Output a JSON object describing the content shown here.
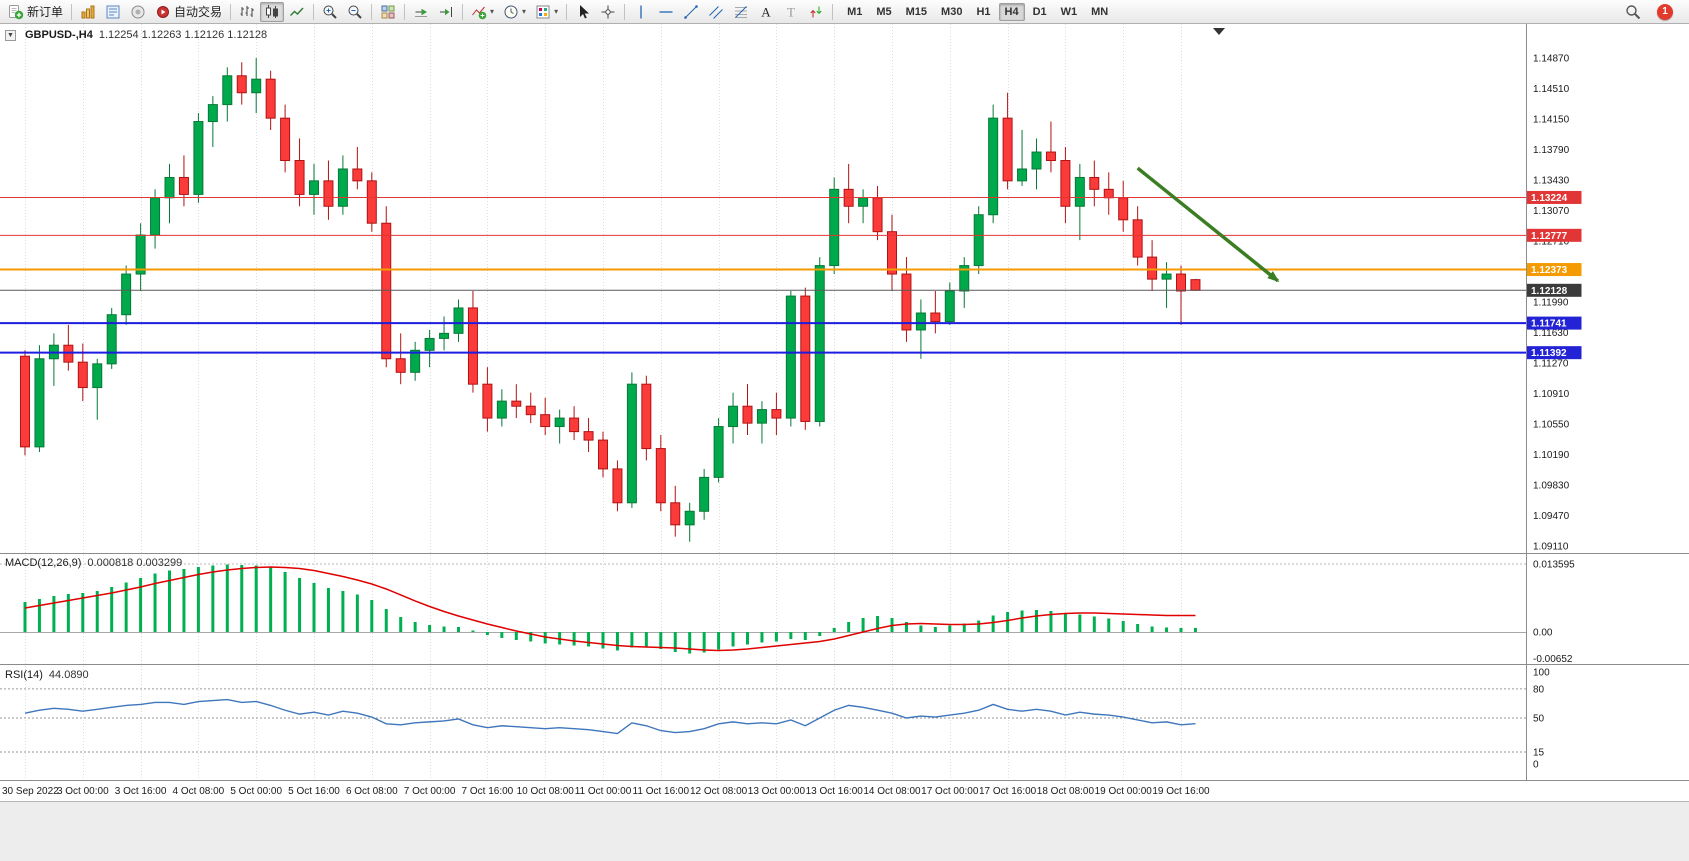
{
  "toolbar": {
    "caret_glyph": "▾",
    "notification_count": "1",
    "items": [
      {
        "type": "button",
        "name": "new-order-button",
        "icon": "new-order-icon",
        "label": "新订单"
      },
      {
        "type": "separator"
      },
      {
        "type": "button",
        "name": "new-chart-button",
        "icon": "new-chart-icon"
      },
      {
        "type": "button",
        "name": "market-watch-button",
        "icon": "market-watch-icon"
      },
      {
        "type": "button",
        "name": "data-window-button",
        "icon": "data-window-icon"
      },
      {
        "type": "button",
        "name": "autotrading-button",
        "icon": "autotrading-icon",
        "label": "自动交易"
      },
      {
        "type": "separator"
      },
      {
        "type": "button",
        "name": "bar-chart-button",
        "icon": "bars-icon"
      },
      {
        "type": "button",
        "name": "candlestick-chart-button",
        "icon": "candles-icon",
        "active": true
      },
      {
        "type": "button",
        "name": "line-chart-button",
        "icon": "line-icon"
      },
      {
        "type": "separator"
      },
      {
        "type": "button",
        "name": "zoom-in-button",
        "icon": "zoom-in-icon"
      },
      {
        "type": "button",
        "name": "zoom-out-button",
        "icon": "zoom-out-icon"
      },
      {
        "type": "separator"
      },
      {
        "type": "button",
        "name": "tile-windows-button",
        "icon": "tile-icon"
      },
      {
        "type": "separator"
      },
      {
        "type": "button",
        "name": "auto-scroll-button",
        "icon": "auto-scroll-icon"
      },
      {
        "type": "button",
        "name": "chart-shift-button",
        "icon": "chart-shift-icon"
      },
      {
        "type": "separator"
      },
      {
        "type": "button",
        "name": "indicators-button",
        "icon": "indicators-icon",
        "caret": true
      },
      {
        "type": "button",
        "name": "periods-button",
        "icon": "clock-icon",
        "caret": true
      },
      {
        "type": "button",
        "name": "templates-button",
        "icon": "templates-icon",
        "caret": true
      },
      {
        "type": "separator"
      },
      {
        "type": "button",
        "name": "cursor-button",
        "icon": "cursor-icon"
      },
      {
        "type": "button",
        "name": "crosshair-button",
        "icon": "crosshair-icon"
      },
      {
        "type": "separator"
      },
      {
        "type": "button",
        "name": "vertical-line-button",
        "icon": "vline-icon"
      },
      {
        "type": "button",
        "name": "horizontal-line-button",
        "icon": "hline-icon"
      },
      {
        "type": "button",
        "name": "trendline-button",
        "icon": "trendline-icon"
      },
      {
        "type": "button",
        "name": "channel-button",
        "icon": "channel-icon"
      },
      {
        "type": "button",
        "name": "fibonacci-button",
        "icon": "fibonacci-icon"
      },
      {
        "type": "button",
        "name": "text-button",
        "icon": "text-icon"
      },
      {
        "type": "button",
        "name": "text-label-button",
        "icon": "label-icon"
      },
      {
        "type": "button",
        "name": "arrows-button",
        "icon": "arrows-icon"
      },
      {
        "type": "separator"
      }
    ],
    "timeframes": {
      "items": [
        "M1",
        "M5",
        "M15",
        "M30",
        "H1",
        "H4",
        "D1",
        "W1",
        "MN"
      ],
      "active": "H4"
    }
  },
  "chart": {
    "collapse_glyph": "▼",
    "symbol_period": "GBPUSD-,H4",
    "ohlc_text": "1.12254 1.12263 1.12126 1.12128"
  },
  "chart_data": {
    "type": "candlestick",
    "symbol": "GBPUSD-",
    "timeframe": "H4",
    "current_bar": {
      "open": 1.12254,
      "high": 1.12263,
      "low": 1.12126,
      "close": 1.12128
    },
    "colors": {
      "up_fill": "#00a94c",
      "up_stroke": "#067a36",
      "down_fill": "#fb3a3a",
      "down_stroke": "#b11212",
      "grid": "#dcdcdc",
      "separator": "#8c8c8c",
      "macd_hist": "#00b050",
      "macd_signal": "#e00000",
      "rsi_line": "#3f76bc"
    },
    "price_axis": {
      "max": 1.1487,
      "min": 1.0911,
      "labels": [
        "1.14870",
        "1.14510",
        "1.14150",
        "1.13790",
        "1.13430",
        "1.13070",
        "1.12710",
        "1.12350",
        "1.11990",
        "1.11630",
        "1.11270",
        "1.10910",
        "1.10550",
        "1.10190",
        "1.09830",
        "1.09470",
        "1.09110"
      ]
    },
    "time_labels": [
      "30 Sep 2022",
      "3 Oct 00:00",
      "3 Oct 16:00",
      "4 Oct 08:00",
      "5 Oct 00:00",
      "5 Oct 16:00",
      "6 Oct 08:00",
      "7 Oct 00:00",
      "7 Oct 16:00",
      "10 Oct 08:00",
      "11 Oct 00:00",
      "11 Oct 16:00",
      "12 Oct 08:00",
      "13 Oct 00:00",
      "13 Oct 16:00",
      "14 Oct 08:00",
      "17 Oct 00:00",
      "17 Oct 16:00",
      "18 Oct 08:00",
      "19 Oct 00:00",
      "19 Oct 16:00"
    ],
    "label_every": 4,
    "candles": [
      [
        1.1135,
        1.1142,
        1.1018,
        1.1028
      ],
      [
        1.1028,
        1.1148,
        1.1022,
        1.1132
      ],
      [
        1.1132,
        1.1162,
        1.11,
        1.1148
      ],
      [
        1.1148,
        1.1172,
        1.1118,
        1.1128
      ],
      [
        1.1128,
        1.115,
        1.1082,
        1.1098
      ],
      [
        1.1098,
        1.1132,
        1.106,
        1.1126
      ],
      [
        1.1126,
        1.1192,
        1.112,
        1.1184
      ],
      [
        1.1184,
        1.1242,
        1.1172,
        1.1232
      ],
      [
        1.1232,
        1.1292,
        1.1212,
        1.1278
      ],
      [
        1.1278,
        1.1332,
        1.1262,
        1.1322
      ],
      [
        1.1322,
        1.1362,
        1.1292,
        1.1346
      ],
      [
        1.1346,
        1.1372,
        1.1312,
        1.1326
      ],
      [
        1.1326,
        1.1422,
        1.1316,
        1.1412
      ],
      [
        1.1412,
        1.1442,
        1.1382,
        1.1432
      ],
      [
        1.1432,
        1.1476,
        1.1412,
        1.1466
      ],
      [
        1.1466,
        1.1482,
        1.1432,
        1.1446
      ],
      [
        1.1446,
        1.1487,
        1.1422,
        1.1462
      ],
      [
        1.1462,
        1.1472,
        1.1402,
        1.1416
      ],
      [
        1.1416,
        1.1432,
        1.1352,
        1.1366
      ],
      [
        1.1366,
        1.1392,
        1.1312,
        1.1326
      ],
      [
        1.1326,
        1.1362,
        1.1302,
        1.1342
      ],
      [
        1.1342,
        1.1366,
        1.1296,
        1.1312
      ],
      [
        1.1312,
        1.1372,
        1.1302,
        1.1356
      ],
      [
        1.1356,
        1.1382,
        1.1332,
        1.1342
      ],
      [
        1.1342,
        1.1352,
        1.1282,
        1.1292
      ],
      [
        1.1292,
        1.1312,
        1.1122,
        1.1132
      ],
      [
        1.1132,
        1.1162,
        1.1102,
        1.1116
      ],
      [
        1.1116,
        1.1152,
        1.1106,
        1.1142
      ],
      [
        1.1142,
        1.1166,
        1.1122,
        1.1156
      ],
      [
        1.1156,
        1.1182,
        1.1142,
        1.1162
      ],
      [
        1.1162,
        1.1202,
        1.1152,
        1.1192
      ],
      [
        1.1192,
        1.1212,
        1.1092,
        1.1102
      ],
      [
        1.1102,
        1.1122,
        1.1046,
        1.1062
      ],
      [
        1.1062,
        1.1096,
        1.1052,
        1.1082
      ],
      [
        1.1082,
        1.1102,
        1.1062,
        1.1076
      ],
      [
        1.1076,
        1.1092,
        1.1056,
        1.1066
      ],
      [
        1.1066,
        1.1086,
        1.1042,
        1.1052
      ],
      [
        1.1052,
        1.1072,
        1.1032,
        1.1062
      ],
      [
        1.1062,
        1.1076,
        1.1036,
        1.1046
      ],
      [
        1.1046,
        1.1062,
        1.1022,
        1.1036
      ],
      [
        1.1036,
        1.1046,
        1.0992,
        1.1002
      ],
      [
        1.1002,
        1.1012,
        1.0952,
        1.0962
      ],
      [
        1.0962,
        1.1116,
        1.0956,
        1.1102
      ],
      [
        1.1102,
        1.1112,
        1.1012,
        1.1026
      ],
      [
        1.1026,
        1.1042,
        1.0952,
        1.0962
      ],
      [
        1.0962,
        1.0982,
        1.0922,
        1.0936
      ],
      [
        1.0936,
        1.0962,
        1.0916,
        1.0952
      ],
      [
        1.0952,
        1.1002,
        1.0942,
        1.0992
      ],
      [
        1.0992,
        1.1062,
        1.0986,
        1.1052
      ],
      [
        1.1052,
        1.1092,
        1.1032,
        1.1076
      ],
      [
        1.1076,
        1.1102,
        1.1042,
        1.1056
      ],
      [
        1.1056,
        1.1082,
        1.1032,
        1.1072
      ],
      [
        1.1072,
        1.1092,
        1.1042,
        1.1062
      ],
      [
        1.1062,
        1.1212,
        1.1052,
        1.1206
      ],
      [
        1.1206,
        1.1216,
        1.1048,
        1.1058
      ],
      [
        1.1058,
        1.1252,
        1.1052,
        1.1242
      ],
      [
        1.1242,
        1.1346,
        1.1232,
        1.1332
      ],
      [
        1.1332,
        1.1362,
        1.1292,
        1.1312
      ],
      [
        1.1312,
        1.1332,
        1.1292,
        1.1322
      ],
      [
        1.1322,
        1.1336,
        1.1272,
        1.1282
      ],
      [
        1.1282,
        1.1302,
        1.1212,
        1.1232
      ],
      [
        1.1232,
        1.1252,
        1.1152,
        1.1166
      ],
      [
        1.1166,
        1.1202,
        1.1132,
        1.1186
      ],
      [
        1.1186,
        1.1212,
        1.1162,
        1.1176
      ],
      [
        1.1176,
        1.1222,
        1.1172,
        1.1212
      ],
      [
        1.1212,
        1.1252,
        1.1192,
        1.1242
      ],
      [
        1.1242,
        1.1312,
        1.1232,
        1.1302
      ],
      [
        1.1302,
        1.1432,
        1.1292,
        1.1416
      ],
      [
        1.1416,
        1.1446,
        1.1332,
        1.1342
      ],
      [
        1.1342,
        1.1402,
        1.1336,
        1.1356
      ],
      [
        1.1356,
        1.1392,
        1.1332,
        1.1376
      ],
      [
        1.1376,
        1.1412,
        1.1352,
        1.1366
      ],
      [
        1.1366,
        1.1382,
        1.1292,
        1.1312
      ],
      [
        1.1312,
        1.1362,
        1.1272,
        1.1346
      ],
      [
        1.1346,
        1.1366,
        1.1312,
        1.1332
      ],
      [
        1.1332,
        1.1352,
        1.1302,
        1.1322
      ],
      [
        1.1322,
        1.1342,
        1.1282,
        1.1296
      ],
      [
        1.1296,
        1.1312,
        1.1242,
        1.1252
      ],
      [
        1.1252,
        1.1272,
        1.1212,
        1.1226
      ],
      [
        1.1226,
        1.1246,
        1.1192,
        1.1232
      ],
      [
        1.1232,
        1.1242,
        1.1172,
        1.1212
      ],
      [
        1.12254,
        1.12263,
        1.12126,
        1.12128
      ]
    ],
    "hlines": [
      {
        "price": 1.13224,
        "color": "#e23535",
        "width": 1,
        "tag": "1.13224",
        "tag_bg": "#e23535"
      },
      {
        "price": 1.12777,
        "color": "#e23535",
        "width": 1,
        "tag": "1.12777",
        "tag_bg": "#e23535"
      },
      {
        "price": 1.12373,
        "color": "#f59a00",
        "width": 2,
        "tag": "1.12373",
        "tag_bg": "#f59a00"
      },
      {
        "price": 1.12128,
        "color": "#5a5a5a",
        "width": 1,
        "tag": "1.12128",
        "tag_bg": "#3b3b3b"
      },
      {
        "price": 1.11741,
        "color": "#1d1de0",
        "width": 2,
        "tag": "1.11741",
        "tag_bg": "#2323d6"
      },
      {
        "price": 1.11392,
        "color": "#1d1de0",
        "width": 2,
        "tag": "1.11392",
        "tag_bg": "#2323d6"
      }
    ],
    "arrow": {
      "from_index": 77,
      "from_price": 1.1357,
      "to_index": 86.7,
      "to_price": 1.1224,
      "color": "#3a7d22"
    },
    "macd": {
      "label": "MACD(12,26,9)",
      "values_text": "0.000818 0.003299",
      "axis_labels": [
        "0.013595",
        "0.00",
        "-0.00652"
      ],
      "axis_values": [
        0.013595,
        0.0,
        -0.00652
      ],
      "histogram": [
        0.006,
        0.0066,
        0.0072,
        0.0076,
        0.0078,
        0.0082,
        0.009,
        0.0099,
        0.0108,
        0.0117,
        0.0123,
        0.0126,
        0.013,
        0.0133,
        0.0135,
        0.0134,
        0.0133,
        0.0129,
        0.012,
        0.0108,
        0.0098,
        0.0088,
        0.0082,
        0.0075,
        0.0064,
        0.0046,
        0.003,
        0.002,
        0.0014,
        0.0011,
        0.001,
        0.0003,
        -0.0006,
        -0.0012,
        -0.0016,
        -0.0019,
        -0.0023,
        -0.0025,
        -0.0027,
        -0.0029,
        -0.0033,
        -0.0037,
        -0.0031,
        -0.003,
        -0.0034,
        -0.004,
        -0.0043,
        -0.0041,
        -0.0035,
        -0.0029,
        -0.0025,
        -0.0021,
        -0.0019,
        -0.0014,
        -0.0016,
        -0.0008,
        0.0008,
        0.002,
        0.0028,
        0.0032,
        0.0028,
        0.002,
        0.0013,
        0.001,
        0.0013,
        0.0017,
        0.0023,
        0.0033,
        0.004,
        0.0043,
        0.0044,
        0.0042,
        0.0038,
        0.0035,
        0.0031,
        0.0027,
        0.0022,
        0.0016,
        0.0011,
        0.0009,
        0.0008,
        0.000818
      ],
      "signal": [
        0.0048,
        0.0053,
        0.0058,
        0.0063,
        0.0068,
        0.0073,
        0.0078,
        0.0084,
        0.009,
        0.0097,
        0.0103,
        0.0109,
        0.0115,
        0.012,
        0.0124,
        0.0127,
        0.0129,
        0.013,
        0.0129,
        0.0127,
        0.0123,
        0.0117,
        0.0111,
        0.0104,
        0.0096,
        0.0086,
        0.0074,
        0.0062,
        0.0051,
        0.0041,
        0.0032,
        0.0024,
        0.0016,
        0.0009,
        0.0002,
        -0.0004,
        -0.001,
        -0.0014,
        -0.0018,
        -0.0021,
        -0.0024,
        -0.0027,
        -0.0029,
        -0.003,
        -0.0031,
        -0.0032,
        -0.0034,
        -0.0036,
        -0.0037,
        -0.0036,
        -0.0034,
        -0.0031,
        -0.0028,
        -0.0025,
        -0.0022,
        -0.0019,
        -0.0014,
        -0.0007,
        0.0,
        0.0007,
        0.0013,
        0.0016,
        0.0017,
        0.0016,
        0.0015,
        0.0015,
        0.0016,
        0.0019,
        0.0023,
        0.0028,
        0.0032,
        0.0035,
        0.0037,
        0.0038,
        0.0038,
        0.0037,
        0.0036,
        0.0035,
        0.0034,
        0.0033,
        0.0033,
        0.003299
      ]
    },
    "rsi": {
      "label": "RSI(14)",
      "value_text": "44.0890",
      "axis_labels": [
        "100",
        "80",
        "50",
        "15",
        "0"
      ],
      "axis_values": [
        100,
        80,
        50,
        15,
        0
      ],
      "levels": [
        80,
        50,
        15
      ],
      "values": [
        55,
        58,
        60,
        59,
        57,
        59,
        61,
        63,
        64,
        66,
        66,
        64,
        67,
        68,
        69,
        66,
        67,
        63,
        58,
        54,
        56,
        53,
        57,
        55,
        51,
        44,
        43,
        45,
        46,
        47,
        49,
        43,
        40,
        42,
        41,
        40,
        39,
        40,
        39,
        38,
        36,
        34,
        45,
        42,
        37,
        35,
        36,
        39,
        44,
        46,
        44,
        45,
        44,
        48,
        42,
        50,
        58,
        63,
        61,
        58,
        55,
        50,
        52,
        51,
        53,
        55,
        58,
        64,
        59,
        57,
        59,
        57,
        53,
        56,
        54,
        53,
        51,
        48,
        45,
        46,
        43,
        44.089
      ]
    }
  }
}
